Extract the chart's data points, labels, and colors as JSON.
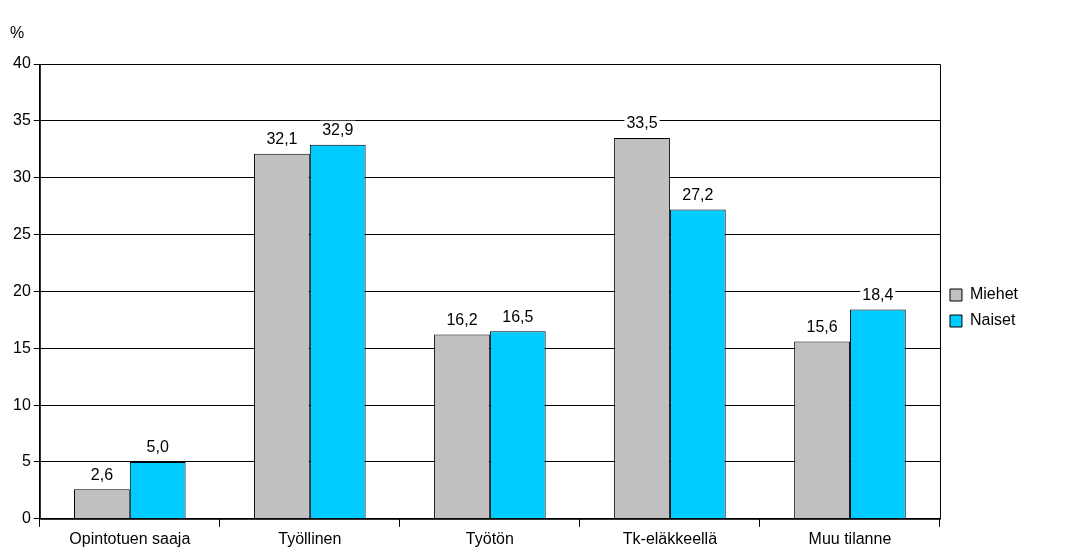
{
  "chart_data": {
    "type": "bar",
    "ylabel": "%",
    "categories": [
      "Opintotuen saaja",
      "Työllinen",
      "Työtön",
      "Tk-eläkkeellä",
      "Muu tilanne"
    ],
    "series": [
      {
        "name": "Miehet",
        "color": "#c0c0c0",
        "values": [
          2.6,
          32.1,
          16.2,
          33.5,
          15.6
        ],
        "value_labels": [
          "2,6",
          "32,1",
          "16,2",
          "33,5",
          "15,6"
        ]
      },
      {
        "name": "Naiset",
        "color": "#00ccff",
        "values": [
          5.0,
          32.9,
          16.5,
          27.2,
          18.4
        ],
        "value_labels": [
          "5,0",
          "32,9",
          "16,5",
          "27,2",
          "18,4"
        ]
      }
    ],
    "ylim": [
      0,
      40
    ],
    "yticks": [
      0,
      5,
      10,
      15,
      20,
      25,
      30,
      35,
      40
    ],
    "grid": "y",
    "legend": "right"
  }
}
